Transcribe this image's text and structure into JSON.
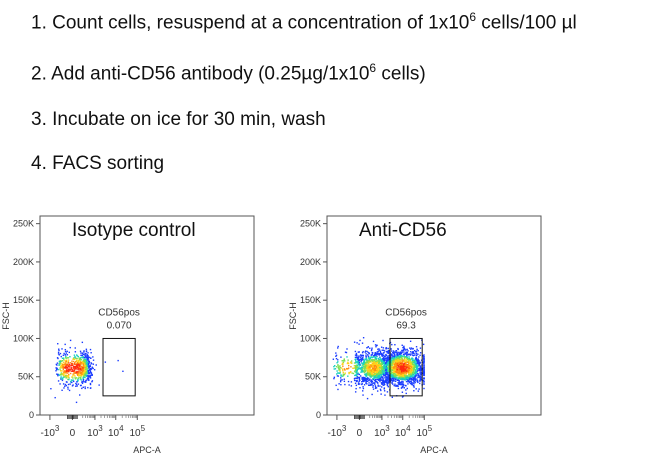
{
  "steps": [
    {
      "number": "1.",
      "pre": "Count cells, resuspend at a concentration of 1x10",
      "sup": "6",
      "post": " cells/100 µl"
    },
    {
      "number": "2.",
      "pre": "Add anti-CD56 antibody (0.25µg/1x10",
      "sup": "6",
      "post": " cells)"
    },
    {
      "number": "3.",
      "pre": "Incubate on ice for 30 min, wash",
      "sup": "",
      "post": ""
    },
    {
      "number": "4.",
      "pre": "FACS sorting",
      "sup": "",
      "post": ""
    }
  ],
  "plots": [
    {
      "title": "Isotype control",
      "xlabel": "APC-A",
      "ylabel": "FSC-H",
      "gate": {
        "name": "CD56pos",
        "value": "0.070",
        "x_range": [
          2500,
          80000
        ],
        "y_range": [
          25000,
          100000
        ]
      },
      "population": "single tight cluster near APC-A ≈ 0, FSC-H ≈ 60K"
    },
    {
      "title": "Anti-CD56",
      "xlabel": "APC-A",
      "ylabel": "FSC-H",
      "gate": {
        "name": "CD56pos",
        "value": "69.3",
        "x_range": [
          2500,
          80000
        ],
        "y_range": [
          25000,
          100000
        ]
      },
      "population": "broad population spanning APC-A ≈ -10^3 to 10^5, FSC-H ≈ 40K–90K, densest near 10^4"
    }
  ],
  "axes": {
    "y_ticks": [
      "0",
      "50K",
      "100K",
      "150K",
      "200K",
      "250K"
    ],
    "y_tick_values": [
      0,
      50000,
      100000,
      150000,
      200000,
      250000
    ],
    "x_ticks": [
      {
        "base": "-10",
        "exp": "3"
      },
      {
        "base": "0",
        "exp": ""
      },
      {
        "base": "10",
        "exp": "3"
      },
      {
        "base": "10",
        "exp": "4"
      },
      {
        "base": "10",
        "exp": "5"
      }
    ]
  },
  "colors": {
    "low": "#1a3cff",
    "mid": "#18d0c0",
    "high": "#ffd21a",
    "peak": "#ff2a10"
  }
}
